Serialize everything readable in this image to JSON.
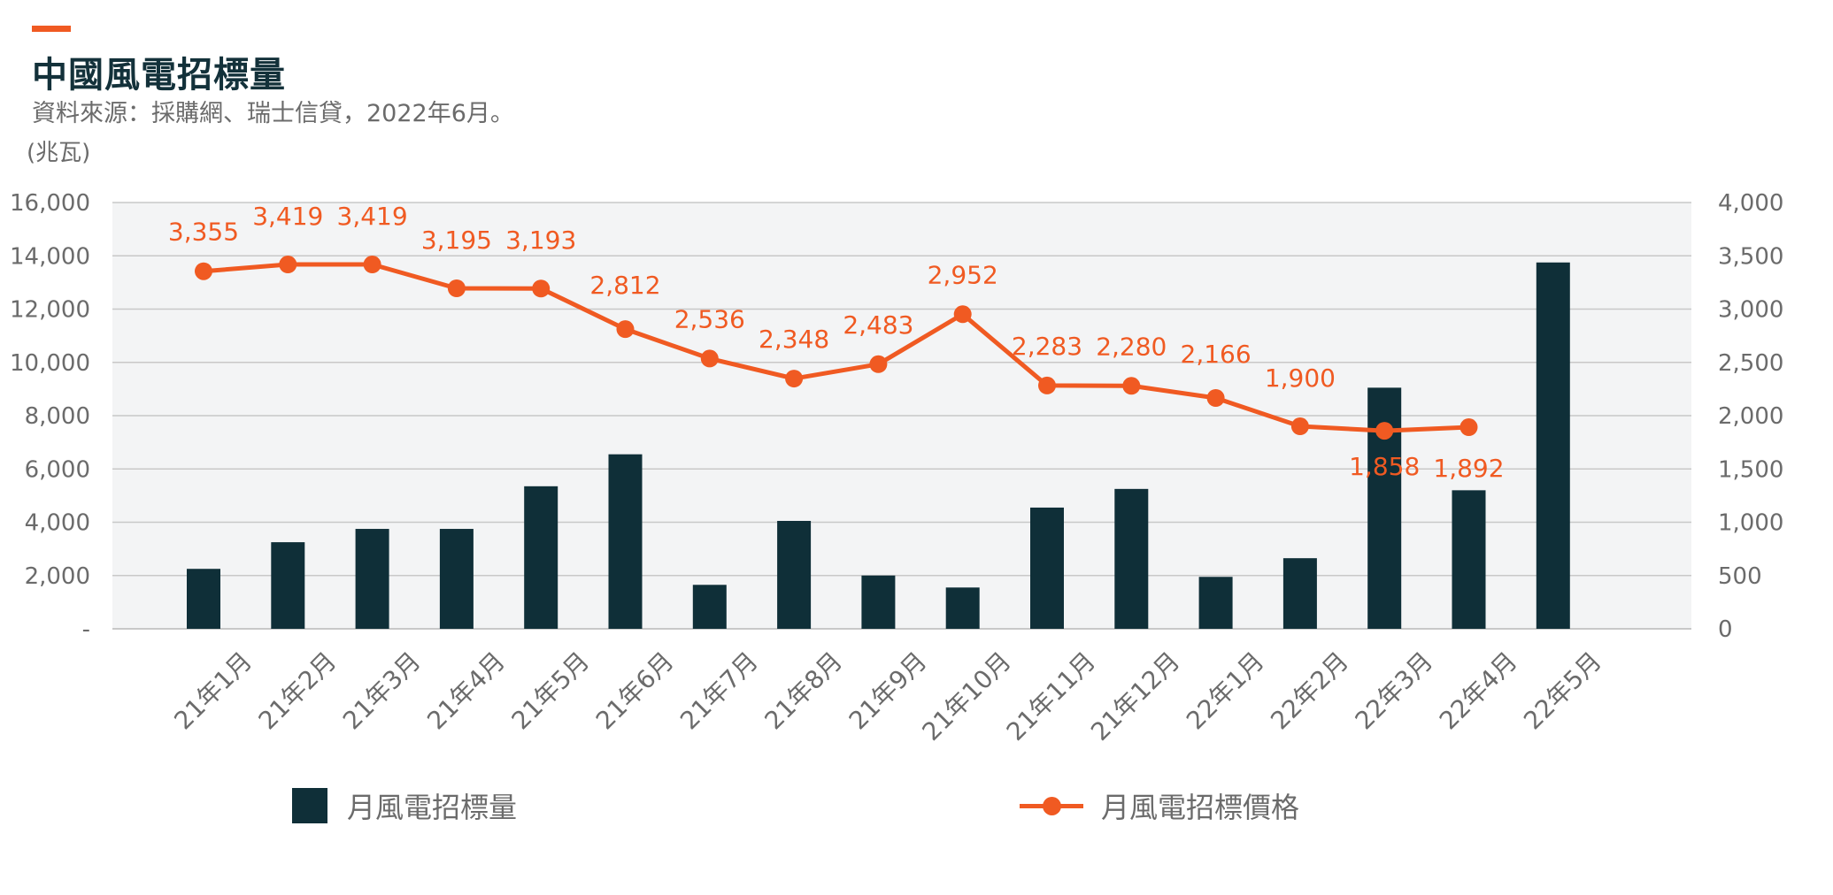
{
  "header": {
    "title": "中國風電招標量",
    "subtitle": "資料來源：採購網、瑞士信貸，2022年6月。",
    "unit_label": "(兆瓦)"
  },
  "colors": {
    "accent": "#f05a22",
    "bars": "#0f2f38",
    "plot_bg": "#f3f4f5",
    "grid": "#c8c8c8",
    "axis_text": "#6b6b6b"
  },
  "legend": {
    "bar_label": "月風電招標量",
    "line_label": "月風電招標價格"
  },
  "chart_data": {
    "type": "bar",
    "categories": [
      "21年1月",
      "21年2月",
      "21年3月",
      "21年4月",
      "21年5月",
      "21年6月",
      "21年7月",
      "21年8月",
      "21年9月",
      "21年10月",
      "21年11月",
      "21年12月",
      "22年1月",
      "22年2月",
      "22年3月",
      "22年4月",
      "22年5月"
    ],
    "series": [
      {
        "name": "月風電招標量",
        "type": "bar",
        "axis": "left",
        "values": [
          2250,
          3250,
          3750,
          3750,
          5350,
          6550,
          1650,
          4050,
          2000,
          1550,
          4550,
          5250,
          1950,
          2650,
          9050,
          5200,
          13750
        ]
      },
      {
        "name": "月風電招標價格",
        "type": "line",
        "axis": "right",
        "values": [
          3355,
          3419,
          3419,
          3195,
          3193,
          2812,
          2536,
          2348,
          2483,
          2952,
          2283,
          2280,
          2166,
          1900,
          1858,
          1892,
          null
        ],
        "labels": [
          "3,355",
          "3,419",
          "3,419",
          "3,195",
          "3,193",
          "2,812",
          "2,536",
          "2,348",
          "2,483",
          "2,952",
          "2,283",
          "2,280",
          "2,166",
          "1,900",
          "1,858",
          "1,892",
          ""
        ]
      }
    ],
    "y_left": {
      "ylim": [
        0,
        16000
      ],
      "ticks": [
        0,
        2000,
        4000,
        6000,
        8000,
        10000,
        12000,
        14000,
        16000
      ],
      "tick_labels": [
        "-",
        "2,000",
        "4,000",
        "6,000",
        "8,000",
        "10,000",
        "12,000",
        "14,000",
        "16,000"
      ]
    },
    "y_right": {
      "ylim": [
        0,
        4000
      ],
      "ticks": [
        0,
        500,
        1000,
        1500,
        2000,
        2500,
        3000,
        3500,
        4000
      ],
      "tick_labels": [
        "0",
        "500",
        "1,000",
        "1,500",
        "2,000",
        "2,500",
        "3,000",
        "3,500",
        "4,000"
      ]
    },
    "grid": true,
    "legend_position": "bottom"
  }
}
